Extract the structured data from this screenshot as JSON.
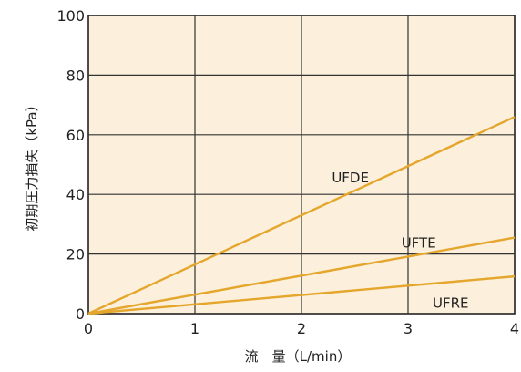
{
  "chart_data": {
    "type": "line",
    "title": "",
    "xlabel": "流　量（L/min）",
    "ylabel": "初期圧力損失（kPa）",
    "xlim": [
      0,
      4
    ],
    "ylim": [
      0,
      100
    ],
    "x_ticks": [
      "0",
      "1",
      "2",
      "3",
      "4"
    ],
    "y_ticks": [
      "0",
      "20",
      "40",
      "60",
      "80",
      "100"
    ],
    "grid": true,
    "plot_background": "#fcf0dc",
    "line_color": "#e4a62c",
    "series": [
      {
        "name": "UFDE",
        "x": [
          0,
          4
        ],
        "y": [
          0,
          66
        ]
      },
      {
        "name": "UFTE",
        "x": [
          0,
          4
        ],
        "y": [
          0,
          25.5
        ]
      },
      {
        "name": "UFRE",
        "x": [
          0,
          4
        ],
        "y": [
          0,
          12.5
        ]
      }
    ]
  }
}
